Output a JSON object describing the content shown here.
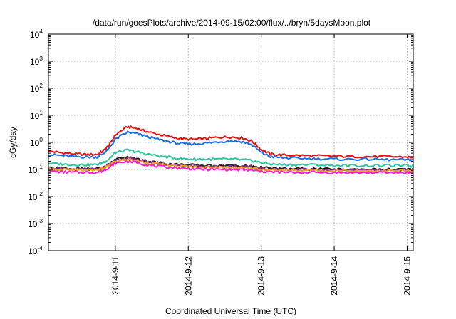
{
  "chart_data": {
    "type": "line",
    "title": "/data/run/goesPlots/archive/2014-09-15/02:00/flux/../bryn/5daysMoon.plot",
    "xlabel": "Coordinated Universal Time (UTC)",
    "ylabel": "cGy/day",
    "yscale": "log",
    "ylim": [
      0.0001,
      10000
    ],
    "xlim": [
      "2014-09-10T02:00",
      "2014-09-15T02:00"
    ],
    "grid": true,
    "yticks": [
      {
        "value": 0.0001,
        "base": "10",
        "exp": "-4"
      },
      {
        "value": 0.001,
        "base": "10",
        "exp": "-3"
      },
      {
        "value": 0.01,
        "base": "10",
        "exp": "-2"
      },
      {
        "value": 0.1,
        "base": "10",
        "exp": "-1"
      },
      {
        "value": 1,
        "base": "10",
        "exp": "0"
      },
      {
        "value": 10,
        "base": "10",
        "exp": "1"
      },
      {
        "value": 100,
        "base": "10",
        "exp": "2"
      },
      {
        "value": 1000,
        "base": "10",
        "exp": "3"
      },
      {
        "value": 10000,
        "base": "10",
        "exp": "4"
      }
    ],
    "xticks": [
      {
        "date": "2014-09-11T00:00",
        "label": "2014-9-11"
      },
      {
        "date": "2014-09-12T00:00",
        "label": "2014-9-12"
      },
      {
        "date": "2014-09-13T00:00",
        "label": "2014-9-13"
      },
      {
        "date": "2014-09-14T00:00",
        "label": "2014-9-14"
      },
      {
        "date": "2014-09-15T00:00",
        "label": "2014-9-15"
      }
    ],
    "x": [
      "2014-09-10T02:00",
      "2014-09-10T06:00",
      "2014-09-10T10:00",
      "2014-09-10T14:00",
      "2014-09-10T18:00",
      "2014-09-10T20:00",
      "2014-09-10T22:00",
      "2014-09-11T00:00",
      "2014-09-11T04:00",
      "2014-09-11T07:00",
      "2014-09-11T10:00",
      "2014-09-11T14:00",
      "2014-09-11T18:00",
      "2014-09-11T22:00",
      "2014-09-12T02:00",
      "2014-09-12T06:00",
      "2014-09-12T10:00",
      "2014-09-12T14:00",
      "2014-09-12T18:00",
      "2014-09-12T21:00",
      "2014-09-13T00:00",
      "2014-09-13T03:00",
      "2014-09-13T07:00",
      "2014-09-13T12:00",
      "2014-09-13T18:00",
      "2014-09-14T00:00",
      "2014-09-14T06:00",
      "2014-09-14T12:00",
      "2014-09-14T18:00",
      "2014-09-15T00:00",
      "2014-09-15T02:00"
    ],
    "series": [
      {
        "color": "#e8110f",
        "values": [
          0.48,
          0.42,
          0.38,
          0.36,
          0.36,
          0.48,
          0.8,
          1.9,
          3.8,
          3.3,
          2.6,
          2.0,
          1.6,
          1.35,
          1.3,
          1.4,
          1.55,
          1.6,
          1.45,
          1.1,
          0.55,
          0.37,
          0.34,
          0.33,
          0.32,
          0.31,
          0.3,
          0.3,
          0.3,
          0.29,
          0.28
        ]
      },
      {
        "color": "#1a6fe8",
        "values": [
          0.36,
          0.33,
          0.3,
          0.29,
          0.29,
          0.38,
          0.6,
          1.3,
          2.4,
          2.1,
          1.7,
          1.3,
          1.05,
          0.88,
          0.88,
          0.95,
          1.05,
          1.15,
          1.05,
          0.8,
          0.42,
          0.3,
          0.27,
          0.26,
          0.25,
          0.24,
          0.24,
          0.24,
          0.23,
          0.23,
          0.23
        ]
      },
      {
        "color": "#2ec4a0",
        "values": [
          0.17,
          0.16,
          0.15,
          0.15,
          0.15,
          0.18,
          0.25,
          0.42,
          0.52,
          0.45,
          0.38,
          0.32,
          0.28,
          0.25,
          0.24,
          0.24,
          0.24,
          0.24,
          0.23,
          0.21,
          0.18,
          0.16,
          0.15,
          0.15,
          0.15,
          0.14,
          0.14,
          0.14,
          0.14,
          0.14,
          0.13
        ]
      },
      {
        "color": "#1e1e1e",
        "values": [
          0.115,
          0.11,
          0.105,
          0.105,
          0.105,
          0.12,
          0.16,
          0.24,
          0.28,
          0.25,
          0.21,
          0.18,
          0.16,
          0.15,
          0.145,
          0.14,
          0.14,
          0.14,
          0.135,
          0.13,
          0.12,
          0.11,
          0.105,
          0.105,
          0.105,
          0.1,
          0.1,
          0.1,
          0.1,
          0.1,
          0.1
        ]
      },
      {
        "color": "#8a2b94",
        "values": [
          0.11,
          0.105,
          0.1,
          0.1,
          0.1,
          0.115,
          0.15,
          0.22,
          0.26,
          0.23,
          0.2,
          0.17,
          0.15,
          0.14,
          0.135,
          0.13,
          0.13,
          0.13,
          0.125,
          0.12,
          0.11,
          0.1,
          0.1,
          0.1,
          0.1,
          0.095,
          0.095,
          0.095,
          0.095,
          0.095,
          0.095
        ]
      },
      {
        "color": "#f0a020",
        "values": [
          0.105,
          0.1,
          0.095,
          0.095,
          0.095,
          0.11,
          0.14,
          0.2,
          0.24,
          0.21,
          0.18,
          0.16,
          0.14,
          0.13,
          0.125,
          0.12,
          0.12,
          0.12,
          0.115,
          0.11,
          0.1,
          0.095,
          0.093,
          0.093,
          0.093,
          0.09,
          0.09,
          0.09,
          0.09,
          0.09,
          0.09
        ]
      },
      {
        "color": "#f020c8",
        "values": [
          0.085,
          0.082,
          0.078,
          0.078,
          0.078,
          0.09,
          0.12,
          0.17,
          0.2,
          0.18,
          0.15,
          0.13,
          0.12,
          0.11,
          0.105,
          0.1,
          0.1,
          0.1,
          0.097,
          0.092,
          0.085,
          0.08,
          0.078,
          0.078,
          0.078,
          0.076,
          0.076,
          0.076,
          0.076,
          0.076,
          0.075
        ]
      }
    ]
  }
}
